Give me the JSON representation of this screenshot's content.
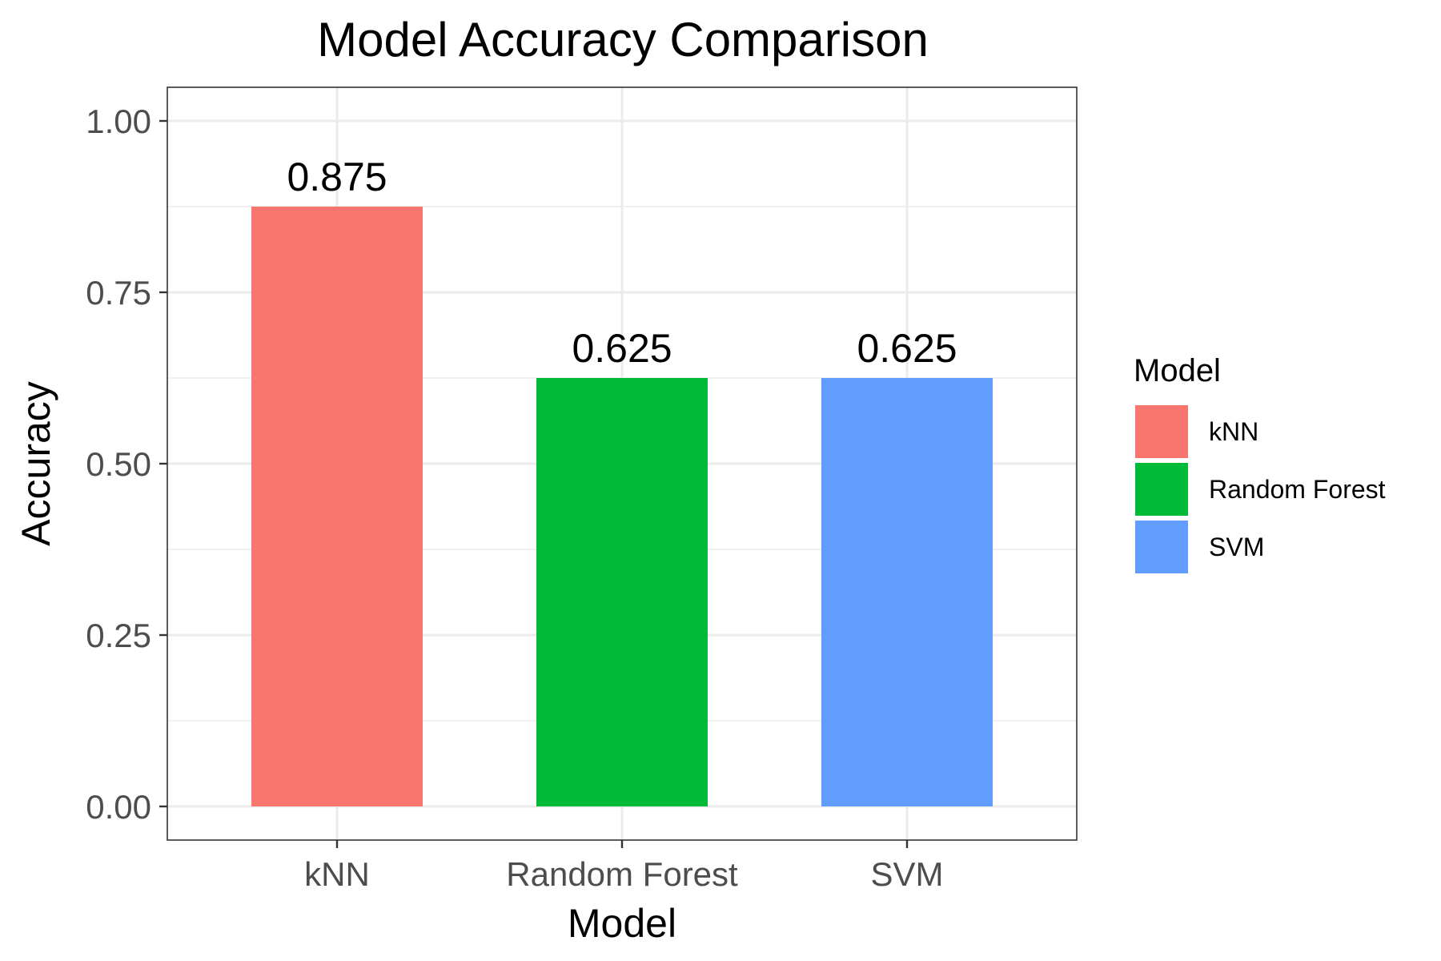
{
  "chart_data": {
    "type": "bar",
    "title": "Model Accuracy Comparison",
    "xlabel": "Model",
    "ylabel": "Accuracy",
    "categories": [
      "kNN",
      "Random Forest",
      "SVM"
    ],
    "values": [
      0.875,
      0.625,
      0.625
    ],
    "value_labels": [
      "0.875",
      "0.625",
      "0.625"
    ],
    "colors": [
      "#F8766D",
      "#00BA38",
      "#619CFF"
    ],
    "ylim": [
      0,
      1.05
    ],
    "yticks": [
      0,
      0.25,
      0.5,
      0.75,
      1.0
    ],
    "ytick_labels": [
      "0.00",
      "0.25",
      "0.50",
      "0.75",
      "1.00"
    ],
    "grid": true,
    "legend": {
      "title": "Model",
      "position": "right",
      "entries": [
        "kNN",
        "Random Forest",
        "SVM"
      ]
    }
  }
}
